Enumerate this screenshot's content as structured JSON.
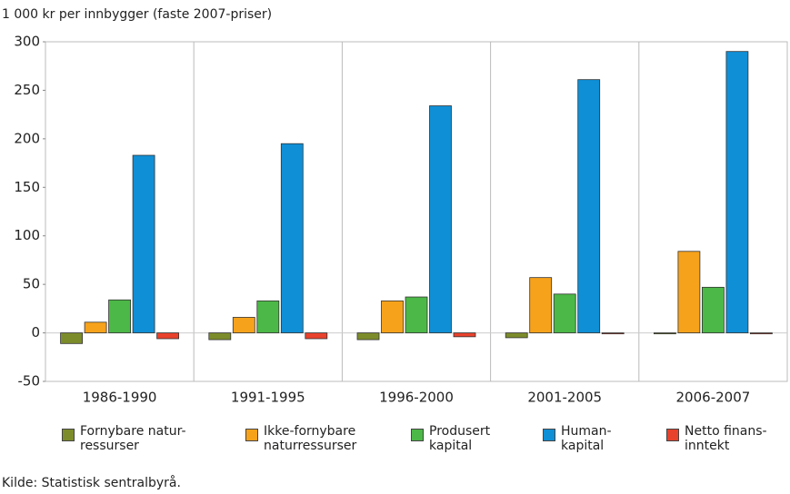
{
  "chart_data": {
    "type": "bar",
    "ylabel": "1 000 kr per innbygger (faste 2007-priser)",
    "source": "Kilde: Statistisk sentralbyrå.",
    "categories": [
      "1986-1990",
      "1991-1995",
      "1996-2000",
      "2001-2005",
      "2006-2007"
    ],
    "series": [
      {
        "name": "Fornybare natur-\nressurser",
        "color": "#7d8c2b",
        "values": [
          -11,
          -7,
          -7,
          -5,
          -1
        ]
      },
      {
        "name": "Ikke-fornybare\nnaturressurser",
        "color": "#f7a21b",
        "values": [
          11,
          16,
          33,
          57,
          84
        ]
      },
      {
        "name": "Produsert\nkapital",
        "color": "#4cb847",
        "values": [
          34,
          33,
          37,
          40,
          47
        ]
      },
      {
        "name": "Human-\nkapital",
        "color": "#0f8fd6",
        "values": [
          183,
          195,
          234,
          261,
          290
        ]
      },
      {
        "name": "Netto finans-\ninntekt",
        "color": "#e8412c",
        "values": [
          -6,
          -6,
          -4,
          -1,
          -1
        ]
      }
    ],
    "ylim": [
      -50,
      300
    ],
    "yticks": [
      -50,
      0,
      50,
      100,
      150,
      200,
      250,
      300
    ],
    "grid": false
  }
}
